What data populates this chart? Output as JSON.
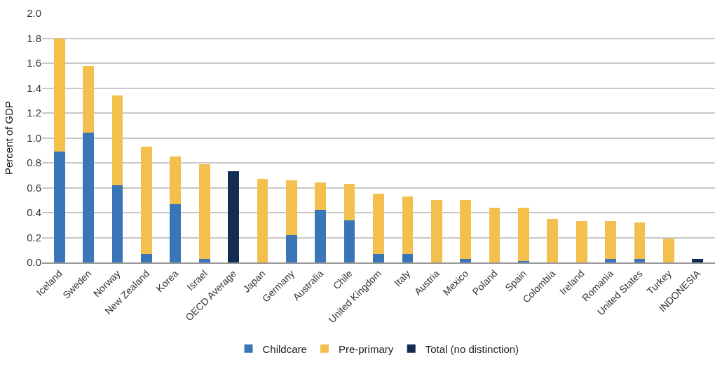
{
  "chart_data": {
    "type": "bar",
    "stacked": true,
    "ylabel": "Percent of GDP",
    "categories": [
      "Iceland",
      "Sweden",
      "Norway",
      "New Zealand",
      "Korea",
      "Israel",
      "OECD Average",
      "Japan",
      "Germany",
      "Australia",
      "Chile",
      "United Kingdom",
      "Italy",
      "Austria",
      "Mexico",
      "Poland",
      "Spain",
      "Colombia",
      "Ireland",
      "Romania",
      "United States",
      "Turkey",
      "INDONESIA"
    ],
    "series": [
      {
        "name": "Childcare",
        "color": "#3a75b8",
        "values": [
          0.89,
          1.04,
          0.62,
          0.07,
          0.47,
          0.03,
          null,
          0,
          0.22,
          0.42,
          0.34,
          0.07,
          0.07,
          0,
          0.03,
          0,
          0.01,
          0,
          0,
          0.03,
          0.03,
          0,
          null
        ]
      },
      {
        "name": "Pre-primary",
        "color": "#f3c04e",
        "values": [
          0.91,
          0.54,
          0.72,
          0.86,
          0.38,
          0.76,
          null,
          0.67,
          0.44,
          0.22,
          0.29,
          0.48,
          0.46,
          0.5,
          0.47,
          0.44,
          0.43,
          0.35,
          0.33,
          0.3,
          0.29,
          0.19,
          null
        ]
      },
      {
        "name": "Total (no distinction)",
        "color": "#132d52",
        "values": [
          null,
          null,
          null,
          null,
          null,
          null,
          0.73,
          null,
          null,
          null,
          null,
          null,
          null,
          null,
          null,
          null,
          null,
          null,
          null,
          null,
          null,
          null,
          0.03
        ]
      }
    ],
    "ylim": [
      0,
      2.0
    ],
    "yticks": [
      {
        "value": 0,
        "label": "0.0"
      },
      {
        "value": 0.2,
        "label": "0.2"
      },
      {
        "value": 0.4,
        "label": "0.4"
      },
      {
        "value": 0.6,
        "label": "0.6"
      },
      {
        "value": 0.8,
        "label": "0.8"
      },
      {
        "value": 1.0,
        "label": "1.0"
      },
      {
        "value": 1.2,
        "label": "1.2"
      },
      {
        "value": 1.4,
        "label": "1.4"
      },
      {
        "value": 1.6,
        "label": "1.6"
      },
      {
        "value": 1.8,
        "label": "1.8"
      },
      {
        "value": 2.0,
        "label": "2.0"
      }
    ],
    "grid": "y",
    "legend": "bottom"
  }
}
